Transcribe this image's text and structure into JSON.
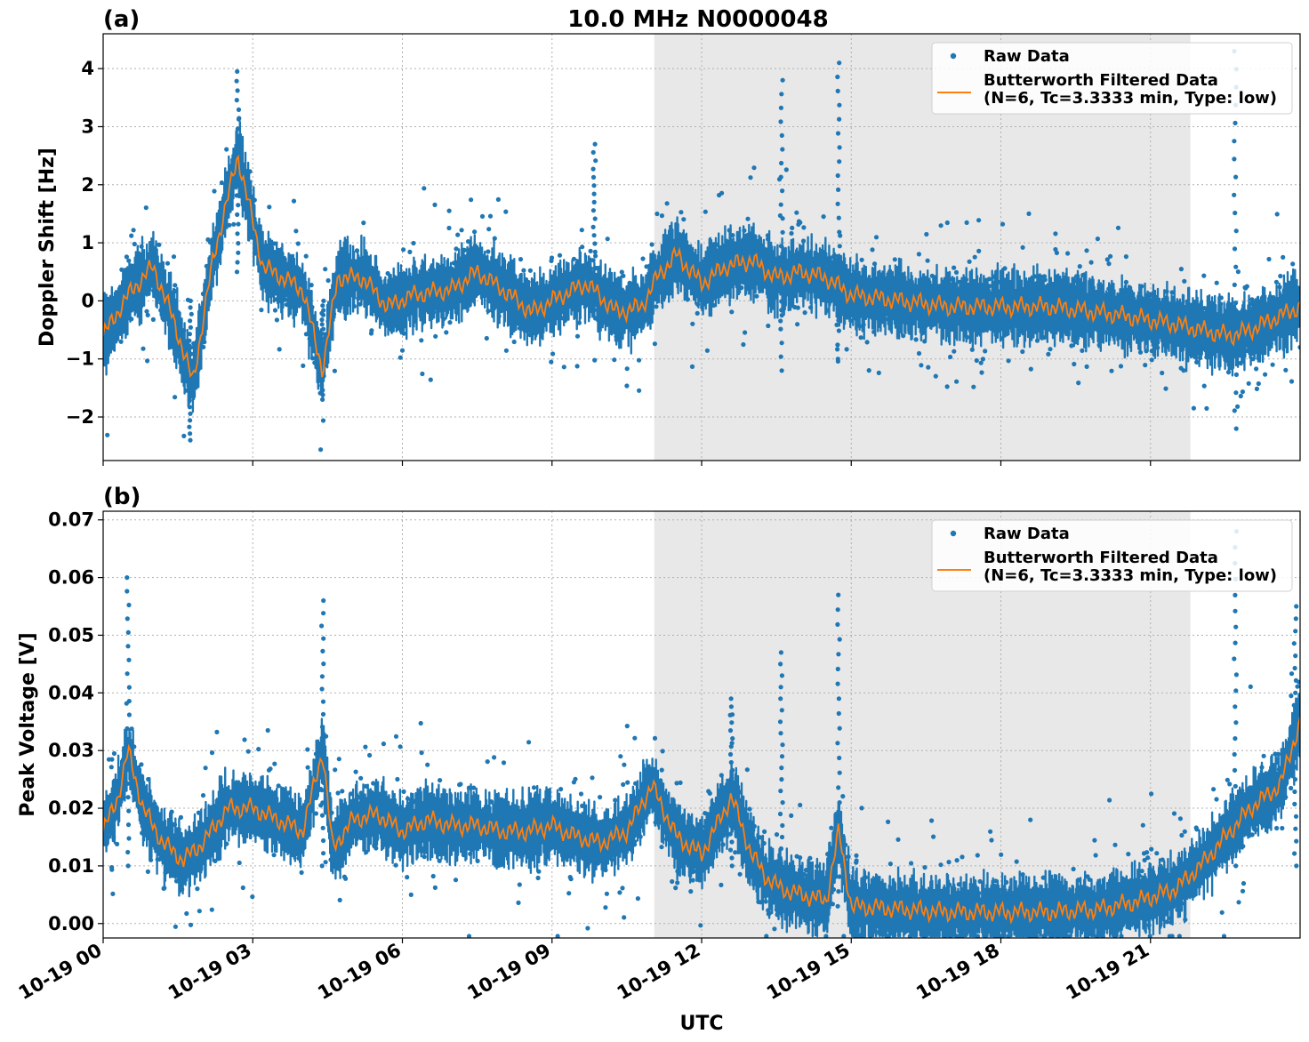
{
  "figure": {
    "title": "10.0 MHz N0000048",
    "xlabel": "UTC"
  },
  "colors": {
    "raw": "#1f77b4",
    "filtered": "#ff7f0e",
    "shade": "#e8e8e8",
    "grid": "#b0b0b0"
  },
  "chart_data": [
    {
      "type": "scatter",
      "panel_label": "(a)",
      "ylabel": "Doppler Shift [Hz]",
      "xlim": [
        0,
        24
      ],
      "ylim": [
        -2.75,
        4.6
      ],
      "yticks": [
        -2,
        -1,
        0,
        1,
        2,
        3,
        4
      ],
      "ytick_labels": [
        "−2",
        "−1",
        "0",
        "1",
        "2",
        "3",
        "4"
      ],
      "xticks": [
        0,
        3,
        6,
        9,
        12,
        15,
        18,
        21
      ],
      "xtick_labels": [
        "10-19 00",
        "10-19 03",
        "10-19 06",
        "10-19 09",
        "10-19 12",
        "10-19 15",
        "10-19 18",
        "10-19 21"
      ],
      "grid": true,
      "shaded_region": [
        11.05,
        21.8
      ],
      "legend": {
        "placement": "top-right",
        "entries": [
          "Raw Data",
          "Butterworth Filtered Data",
          "(N=6, Tc=3.3333 min, Type: low)"
        ]
      },
      "series": [
        {
          "name": "Butterworth Filtered Data",
          "x": [
            0,
            0.5,
            1.0,
            1.4,
            1.8,
            2.2,
            2.7,
            3.2,
            4.0,
            4.4,
            4.7,
            5.2,
            5.7,
            6.2,
            7.0,
            7.5,
            8.0,
            8.6,
            9.2,
            9.7,
            10.3,
            10.8,
            11.1,
            11.5,
            12.0,
            12.5,
            13.0,
            13.5,
            14.0,
            14.5,
            15.0,
            16.0,
            17.0,
            18.0,
            19.0,
            20.0,
            20.8,
            21.5,
            22.0,
            22.6,
            23.0,
            23.5,
            24.0
          ],
          "y": [
            -0.6,
            0.1,
            0.6,
            -0.3,
            -1.4,
            0.7,
            2.5,
            0.6,
            0.2,
            -1.2,
            0.4,
            0.4,
            -0.1,
            0.1,
            0.2,
            0.5,
            0.2,
            -0.2,
            0.1,
            0.3,
            -0.2,
            -0.1,
            0.4,
            0.8,
            0.3,
            0.6,
            0.7,
            0.4,
            0.5,
            0.4,
            0.1,
            0.0,
            -0.1,
            -0.1,
            -0.1,
            -0.2,
            -0.3,
            -0.4,
            -0.5,
            -0.6,
            -0.5,
            -0.3,
            -0.1
          ]
        },
        {
          "name": "Raw Data",
          "spread": 0.45,
          "spikes": [
            {
              "x": 13.6,
              "y": [
                -1.2,
                3.8
              ]
            },
            {
              "x": 14.75,
              "y": [
                -1.0,
                4.1
              ]
            },
            {
              "x": 22.7,
              "y": [
                -2.2,
                4.3
              ]
            },
            {
              "x": 9.85,
              "y": [
                -0.3,
                2.7
              ]
            },
            {
              "x": 2.7,
              "y": [
                0.5,
                3.95
              ]
            },
            {
              "x": 1.75,
              "y": [
                -2.4,
                0.0
              ]
            },
            {
              "x": 4.4,
              "y": [
                -1.7,
                0.0
              ]
            }
          ]
        }
      ]
    },
    {
      "type": "scatter",
      "panel_label": "(b)",
      "ylabel": "Peak Voltage [V]",
      "xlim": [
        0,
        24
      ],
      "ylim": [
        -0.0025,
        0.0715
      ],
      "yticks": [
        0.0,
        0.01,
        0.02,
        0.03,
        0.04,
        0.05,
        0.06,
        0.07
      ],
      "ytick_labels": [
        "0.00",
        "0.01",
        "0.02",
        "0.03",
        "0.04",
        "0.05",
        "0.06",
        "0.07"
      ],
      "xticks": [
        0,
        3,
        6,
        9,
        12,
        15,
        18,
        21
      ],
      "xtick_labels": [
        "10-19 00",
        "10-19 03",
        "10-19 06",
        "10-19 09",
        "10-19 12",
        "10-19 15",
        "10-19 18",
        "10-19 21"
      ],
      "grid": true,
      "shaded_region": [
        11.05,
        21.8
      ],
      "legend": {
        "placement": "top-right",
        "entries": [
          "Raw Data",
          "Butterworth Filtered Data",
          "(N=6, Tc=3.3333 min, Type: low)"
        ]
      },
      "series": [
        {
          "name": "Butterworth Filtered Data",
          "x": [
            0,
            0.3,
            0.5,
            0.8,
            1.2,
            1.6,
            2.0,
            2.5,
            3.0,
            3.5,
            4.0,
            4.4,
            4.6,
            5.0,
            5.5,
            6.0,
            6.5,
            7.0,
            7.5,
            8.0,
            8.5,
            9.0,
            9.5,
            10.0,
            10.5,
            11.0,
            11.5,
            12.0,
            12.6,
            13.0,
            13.3,
            13.6,
            14.0,
            14.5,
            14.75,
            15.0,
            16.0,
            17.0,
            18.0,
            19.0,
            20.0,
            20.8,
            21.5,
            22.0,
            22.6,
            23.0,
            23.6,
            24.0
          ],
          "y": [
            0.016,
            0.022,
            0.03,
            0.02,
            0.014,
            0.011,
            0.014,
            0.02,
            0.02,
            0.018,
            0.016,
            0.03,
            0.013,
            0.018,
            0.019,
            0.016,
            0.018,
            0.017,
            0.017,
            0.016,
            0.016,
            0.017,
            0.015,
            0.014,
            0.016,
            0.024,
            0.015,
            0.012,
            0.022,
            0.012,
            0.008,
            0.006,
            0.005,
            0.004,
            0.016,
            0.003,
            0.0025,
            0.002,
            0.002,
            0.002,
            0.0025,
            0.004,
            0.006,
            0.01,
            0.016,
            0.02,
            0.024,
            0.035
          ]
        },
        {
          "name": "Raw Data",
          "spread": 0.45,
          "spikes": [
            {
              "x": 0.5,
              "y": [
                0.01,
                0.06
              ]
            },
            {
              "x": 4.4,
              "y": [
                0.01,
                0.056
              ]
            },
            {
              "x": 13.6,
              "y": [
                0.005,
                0.047
              ]
            },
            {
              "x": 14.75,
              "y": [
                0.003,
                0.057
              ]
            },
            {
              "x": 22.7,
              "y": [
                0.01,
                0.068
              ]
            },
            {
              "x": 12.6,
              "y": [
                0.01,
                0.039
              ]
            },
            {
              "x": 23.9,
              "y": [
                0.01,
                0.055
              ]
            }
          ]
        }
      ]
    }
  ]
}
